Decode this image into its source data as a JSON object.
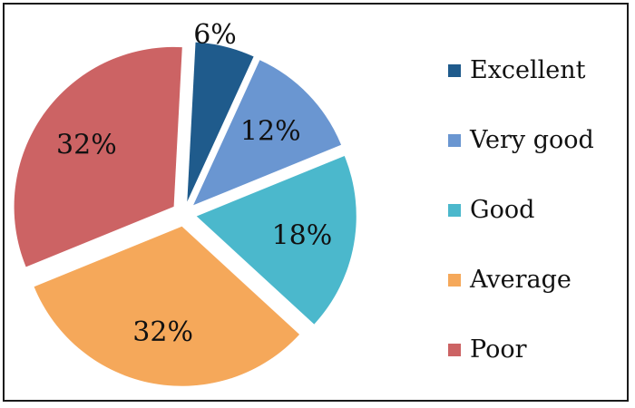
{
  "chart_data": {
    "type": "pie",
    "title": "",
    "categories": [
      "Excellent",
      "Very good",
      "Good",
      "Average",
      "Poor"
    ],
    "values": [
      6,
      12,
      18,
      32,
      32
    ],
    "labels": [
      "6%",
      "12%",
      "18%",
      "32%",
      "32%"
    ],
    "colors": [
      "#1f5b8c",
      "#6a96d1",
      "#4bb8cc",
      "#f5a85a",
      "#cc6364"
    ],
    "exploded": true,
    "legend": {
      "position": "right",
      "entries": [
        "Excellent",
        "Very good",
        "Good",
        "Average",
        "Poor"
      ]
    }
  }
}
